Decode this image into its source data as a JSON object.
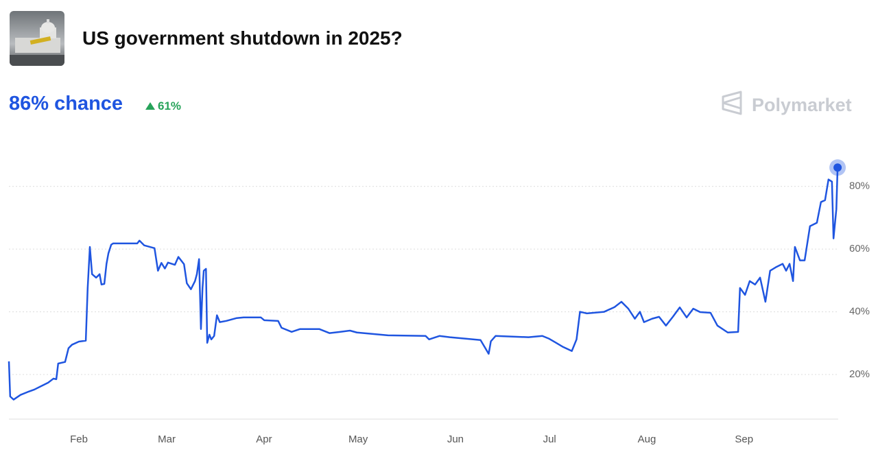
{
  "header": {
    "title": "US government shutdown in 2025?",
    "chance": "86% chance",
    "change": "61%",
    "brand": "Polymarket"
  },
  "chart_data": {
    "type": "line",
    "color": "#1f55e0",
    "x": [
      9.7,
      10.1,
      11.2,
      13.4,
      15.6,
      17.8,
      20,
      22.2,
      23.9,
      24.8,
      25.4,
      27.6,
      28.7,
      29.8,
      32,
      34.2,
      34.8,
      35.5,
      36.2,
      37.5,
      38.6,
      39.2,
      40.1,
      40.8,
      41.4,
      42.3,
      42.9,
      50.6,
      51.3,
      52.8,
      56.1,
      57.2,
      58.3,
      59.4,
      60.4,
      62.6,
      63.7,
      65.5,
      66.4,
      67.7,
      69,
      69.6,
      70.3,
      70.9,
      71.4,
      71.8,
      72.5,
      72.9,
      73.6,
      74.2,
      75.1,
      76,
      76.9,
      79,
      82.3,
      84.5,
      90,
      91.1,
      95.5,
      96.6,
      99.8,
      102.5,
      108.6,
      111.9,
      115.2,
      118.4,
      120.6,
      130.5,
      142.5,
      143.6,
      146.9,
      150.2,
      155.6,
      160,
      162.6,
      163.3,
      164.8,
      175.3,
      179.7,
      181.9,
      184.1,
      186.3,
      189.1,
      190.6,
      191.7,
      193.9,
      199.4,
      202.7,
      204.9,
      207.1,
      209.2,
      210.8,
      212.1,
      214.7,
      216.9,
      219.1,
      221.3,
      223.5,
      225.7,
      227.8,
      230,
      233.3,
      235.5,
      238.8,
      242.1,
      242.7,
      244.3,
      245.8,
      247.5,
      249.1,
      250.8,
      252.3,
      254.1,
      256.3,
      257.4,
      258.5,
      259.6,
      260.2,
      261.8,
      263.3,
      265,
      267.2,
      268.5,
      269.8,
      270.9,
      272,
      272.5,
      273.4,
      273.8
    ],
    "values": [
      24.2,
      13,
      12,
      13.5,
      14.4,
      15.2,
      16.3,
      17.4,
      18.7,
      18.5,
      23.5,
      24,
      28.4,
      29.5,
      30.5,
      30.8,
      47.6,
      60.7,
      52,
      50.9,
      52,
      48.7,
      48.9,
      55.3,
      58.6,
      61.4,
      61.8,
      61.8,
      62.7,
      61.2,
      60.3,
      53.1,
      55.6,
      53.8,
      55.7,
      55,
      57.5,
      55.2,
      49.1,
      47.2,
      49.8,
      52,
      56.8,
      34.5,
      47.6,
      53.1,
      53.7,
      30.1,
      32.7,
      31.2,
      32.3,
      38.9,
      36.7,
      37.1,
      38,
      38.2,
      38.2,
      37.3,
      37.1,
      34.9,
      33.6,
      34.5,
      34.5,
      33.2,
      33.6,
      34,
      33.4,
      32.5,
      32.3,
      31.2,
      32.3,
      31.9,
      31.4,
      31,
      26.6,
      30.6,
      32.3,
      31.9,
      32.3,
      31.4,
      30.1,
      28.8,
      27.5,
      31.2,
      40,
      39.5,
      40,
      41.5,
      43.2,
      41,
      37.8,
      40,
      36.7,
      37.8,
      38.4,
      35.6,
      38.4,
      41.4,
      38.2,
      41,
      39.9,
      39.7,
      35.6,
      33.4,
      33.6,
      47.6,
      45.4,
      49.8,
      48.7,
      50.9,
      43.2,
      53.1,
      54.2,
      55.3,
      53.1,
      55.3,
      49.8,
      60.7,
      56.4,
      56.4,
      67.3,
      68.4,
      75,
      75.6,
      82.2,
      81.5,
      63.4,
      72.7,
      86
    ],
    "xlim": [
      9.7,
      274
    ],
    "ylim": [
      6,
      90
    ],
    "xticks": [
      {
        "value": 32,
        "label": "Feb"
      },
      {
        "value": 60,
        "label": "Mar"
      },
      {
        "value": 91,
        "label": "Apr"
      },
      {
        "value": 121,
        "label": "May"
      },
      {
        "value": 152,
        "label": "Jun"
      },
      {
        "value": 182,
        "label": "Jul"
      },
      {
        "value": 213,
        "label": "Aug"
      },
      {
        "value": 244,
        "label": "Sep"
      }
    ],
    "yticks": [
      {
        "value": 20,
        "label": "20%"
      },
      {
        "value": 40,
        "label": "40%"
      },
      {
        "value": 60,
        "label": "60%"
      },
      {
        "value": 80,
        "label": "80%"
      }
    ],
    "grid": true
  }
}
